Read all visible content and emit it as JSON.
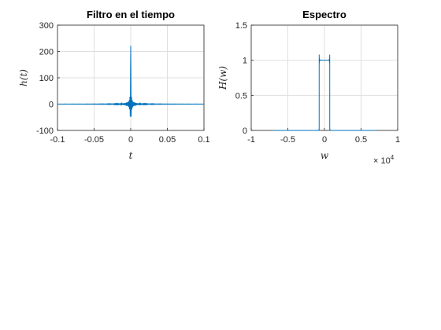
{
  "chart_data": [
    {
      "type": "line",
      "title": "Filtro en el tiempo",
      "xlabel": "t",
      "ylabel": "h(t)",
      "xlim": [
        -0.1,
        0.1
      ],
      "ylim": [
        -100,
        300
      ],
      "xticks": [
        "-0.1",
        "-0.05",
        "0",
        "0.05",
        "0.1"
      ],
      "yticks": [
        "-100",
        "0",
        "100",
        "200",
        "300"
      ],
      "grid": true,
      "series": [
        {
          "color": "#0072BD",
          "x": [
            -0.1,
            -0.06,
            -0.04,
            -0.03,
            -0.02,
            -0.015,
            -0.01,
            -0.005,
            -0.003,
            -0.0015,
            0,
            0.0015,
            0.003,
            0.005,
            0.01,
            0.015,
            0.02,
            0.03,
            0.04,
            0.06,
            0.1
          ],
          "y": [
            0,
            0,
            3,
            -5,
            10,
            -16,
            25,
            -45,
            30,
            150,
            222,
            150,
            30,
            -45,
            25,
            -16,
            10,
            -5,
            3,
            0,
            0
          ]
        }
      ]
    },
    {
      "type": "line",
      "title": "Espectro",
      "xlabel": "w",
      "ylabel": "H(w)",
      "xlim": [
        -10000,
        10000
      ],
      "ylim": [
        0,
        1.5
      ],
      "xticks": [
        "-1",
        "-0.5",
        "0",
        "0.5",
        "1"
      ],
      "yticks": [
        "0",
        "0.5",
        "1",
        "1.5"
      ],
      "x_exponent_label": "× 10",
      "x_exponent_power": "4",
      "grid": true,
      "series": [
        {
          "color": "#0072BD",
          "x": [
            -7000,
            -800,
            -750,
            -720,
            -680,
            -600,
            -400,
            0,
            400,
            600,
            680,
            720,
            750,
            800,
            7000
          ],
          "y": [
            0,
            0,
            0.5,
            1.08,
            1.0,
            1.0,
            1.0,
            1.0,
            1.0,
            1.0,
            1.0,
            1.08,
            0.5,
            0,
            0
          ]
        }
      ]
    }
  ]
}
